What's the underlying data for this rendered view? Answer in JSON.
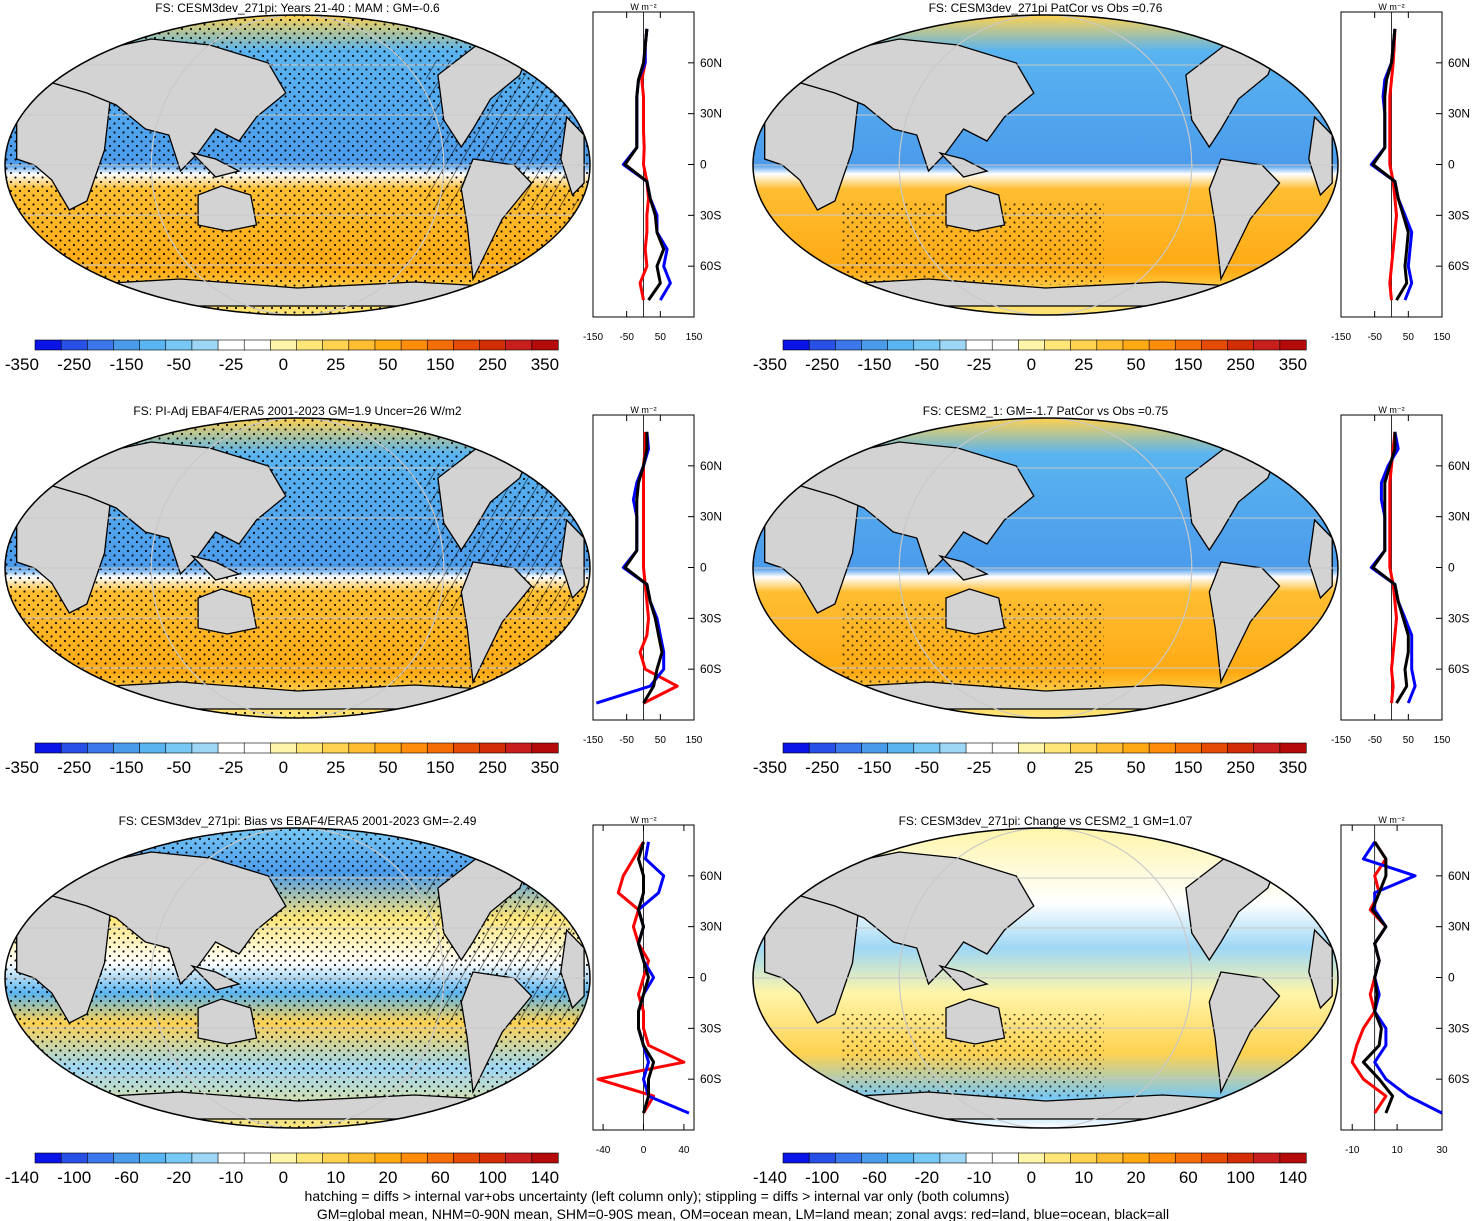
{
  "chart_data": [
    {
      "type": "heatmap",
      "title": "FS: CESM3dev_271pi: Years 21-40 : MAM : GM=-0.6",
      "colorbar_ticks": [
        "-350",
        "-250",
        "-150",
        "-50",
        "-25",
        "0",
        "25",
        "50",
        "150",
        "250",
        "350"
      ],
      "zonal": {
        "unit": "W m⁻²",
        "xticks": [
          "-150",
          "-50",
          "50",
          "150"
        ],
        "yticks": [
          "60N",
          "30N",
          "0",
          "30S",
          "60S"
        ],
        "xlim": [
          -150,
          150
        ],
        "lat": [
          80,
          70,
          60,
          50,
          40,
          30,
          20,
          10,
          0,
          -10,
          -20,
          -30,
          -40,
          -50,
          -60,
          -70,
          -80
        ],
        "series": [
          {
            "color": "#ff0000",
            "values": [
              10,
              5,
              5,
              -5,
              0,
              0,
              0,
              2,
              0,
              10,
              15,
              10,
              10,
              5,
              10,
              -10,
              0
            ]
          },
          {
            "color": "#0000ff",
            "values": [
              10,
              5,
              5,
              -15,
              -20,
              -20,
              -20,
              -20,
              -60,
              10,
              20,
              40,
              40,
              70,
              60,
              80,
              50
            ]
          },
          {
            "color": "#000000",
            "values": [
              10,
              5,
              0,
              -15,
              -20,
              -20,
              -20,
              -20,
              -55,
              10,
              20,
              35,
              40,
              60,
              40,
              50,
              15
            ]
          }
        ]
      }
    },
    {
      "type": "heatmap",
      "title": "FS: CESM3dev_271pi PatCor vs Obs =0.76",
      "colorbar_ticks": [
        "-350",
        "-250",
        "-150",
        "-50",
        "-25",
        "0",
        "25",
        "50",
        "150",
        "250",
        "350"
      ],
      "zonal": {
        "unit": "W m⁻²",
        "xticks": [
          "-150",
          "-50",
          "50",
          "150"
        ],
        "yticks": [
          "60N",
          "30N",
          "0",
          "30S",
          "60S"
        ],
        "xlim": [
          -150,
          150
        ],
        "lat": [
          80,
          70,
          60,
          50,
          40,
          30,
          20,
          10,
          0,
          -10,
          -20,
          -30,
          -40,
          -50,
          -60,
          -70,
          -80
        ],
        "series": [
          {
            "color": "#ff0000",
            "values": [
              10,
              8,
              5,
              0,
              -5,
              -5,
              -5,
              -5,
              -5,
              5,
              10,
              15,
              10,
              5,
              0,
              -5,
              0
            ]
          },
          {
            "color": "#0000ff",
            "values": [
              10,
              5,
              0,
              -20,
              -25,
              -20,
              -20,
              -20,
              -60,
              10,
              20,
              40,
              60,
              55,
              50,
              60,
              40
            ]
          },
          {
            "color": "#000000",
            "values": [
              10,
              5,
              0,
              -15,
              -20,
              -20,
              -20,
              -20,
              -55,
              10,
              20,
              35,
              50,
              45,
              40,
              45,
              15
            ]
          }
        ]
      }
    },
    {
      "type": "heatmap",
      "title": "FS: PI-Adj EBAF4/ERA5 2001-2023 GM=1.9 Uncer=26 W/m2",
      "colorbar_ticks": [
        "-350",
        "-250",
        "-150",
        "-50",
        "-25",
        "0",
        "25",
        "50",
        "150",
        "250",
        "350"
      ],
      "zonal": {
        "unit": "W m⁻²",
        "xticks": [
          "-150",
          "-50",
          "50",
          "150"
        ],
        "yticks": [
          "60N",
          "30N",
          "0",
          "30S",
          "60S"
        ],
        "xlim": [
          -150,
          150
        ],
        "lat": [
          80,
          70,
          60,
          50,
          40,
          30,
          20,
          10,
          0,
          -10,
          -20,
          -30,
          -40,
          -50,
          -60,
          -70,
          -80
        ],
        "series": [
          {
            "color": "#ff0000",
            "values": [
              5,
              5,
              0,
              0,
              0,
              0,
              0,
              0,
              0,
              5,
              10,
              15,
              10,
              -10,
              5,
              100,
              0
            ]
          },
          {
            "color": "#0000ff",
            "values": [
              10,
              15,
              0,
              -20,
              -30,
              -20,
              -20,
              -20,
              -60,
              10,
              20,
              40,
              50,
              60,
              60,
              20,
              -140
            ]
          },
          {
            "color": "#000000",
            "values": [
              10,
              10,
              0,
              -15,
              -20,
              -20,
              -20,
              -20,
              -55,
              10,
              20,
              35,
              45,
              55,
              40,
              30,
              0
            ]
          }
        ]
      }
    },
    {
      "type": "heatmap",
      "title": "FS: CESM2_1: GM=-1.7 PatCor vs Obs =0.75",
      "colorbar_ticks": [
        "-350",
        "-250",
        "-150",
        "-50",
        "-25",
        "0",
        "25",
        "50",
        "150",
        "250",
        "350"
      ],
      "zonal": {
        "unit": "W m⁻²",
        "xticks": [
          "-150",
          "-50",
          "50",
          "150"
        ],
        "yticks": [
          "60N",
          "30N",
          "0",
          "30S",
          "60S"
        ],
        "xlim": [
          -150,
          150
        ],
        "lat": [
          80,
          70,
          60,
          50,
          40,
          30,
          20,
          10,
          0,
          -10,
          -20,
          -30,
          -40,
          -50,
          -60,
          -70,
          -80
        ],
        "series": [
          {
            "color": "#ff0000",
            "values": [
              10,
              5,
              0,
              -5,
              -5,
              -5,
              -5,
              -5,
              -5,
              5,
              10,
              15,
              10,
              5,
              0,
              5,
              0
            ]
          },
          {
            "color": "#0000ff",
            "values": [
              10,
              20,
              -10,
              -30,
              -30,
              -20,
              -20,
              -20,
              -60,
              10,
              20,
              40,
              60,
              60,
              60,
              70,
              50
            ]
          },
          {
            "color": "#000000",
            "values": [
              10,
              10,
              -5,
              -20,
              -20,
              -20,
              -20,
              -20,
              -55,
              10,
              20,
              35,
              50,
              50,
              40,
              45,
              15
            ]
          }
        ]
      }
    },
    {
      "type": "heatmap",
      "title": "FS: CESM3dev_271pi: Bias vs EBAF4/ERA5 2001-2023 GM=-2.49",
      "colorbar_ticks": [
        "-140",
        "-100",
        "-60",
        "-20",
        "-10",
        "0",
        "10",
        "20",
        "60",
        "100",
        "140"
      ],
      "zonal": {
        "unit": "W m⁻²",
        "xticks": [
          "-40",
          "0",
          "40"
        ],
        "yticks": [
          "60N",
          "30N",
          "0",
          "30S",
          "60S"
        ],
        "xlim": [
          -50,
          50
        ],
        "lat": [
          80,
          70,
          60,
          50,
          40,
          30,
          20,
          10,
          0,
          -10,
          -20,
          -30,
          -40,
          -50,
          -60,
          -70,
          -80
        ],
        "series": [
          {
            "color": "#ff0000",
            "values": [
              0,
              -10,
              -20,
              -25,
              -5,
              -10,
              -5,
              5,
              0,
              -5,
              0,
              0,
              5,
              40,
              -45,
              10,
              0
            ]
          },
          {
            "color": "#0000ff",
            "values": [
              5,
              2,
              20,
              15,
              -5,
              0,
              -5,
              0,
              10,
              0,
              -5,
              -5,
              0,
              5,
              0,
              5,
              45
            ]
          },
          {
            "color": "#000000",
            "values": [
              0,
              -5,
              0,
              0,
              -5,
              0,
              -5,
              0,
              5,
              0,
              -5,
              -5,
              0,
              10,
              5,
              5,
              0
            ]
          }
        ]
      }
    },
    {
      "type": "heatmap",
      "title": "FS: CESM3dev_271pi: Change vs CESM2_1 GM=1.07",
      "colorbar_ticks": [
        "-140",
        "-100",
        "-60",
        "-20",
        "-10",
        "0",
        "10",
        "20",
        "60",
        "100",
        "140"
      ],
      "zonal": {
        "unit": "W m⁻²",
        "xticks": [
          "-10",
          "10",
          "30"
        ],
        "yticks": [
          "60N",
          "30N",
          "0",
          "30S",
          "60S"
        ],
        "xlim": [
          -15,
          30
        ],
        "lat": [
          80,
          70,
          60,
          50,
          40,
          30,
          20,
          10,
          0,
          -10,
          -20,
          -30,
          -40,
          -50,
          -60,
          -70,
          -80
        ],
        "series": [
          {
            "color": "#ff0000",
            "values": [
              0,
              5,
              0,
              2,
              -2,
              5,
              0,
              2,
              0,
              -2,
              0,
              -5,
              -8,
              -10,
              -5,
              5,
              0
            ]
          },
          {
            "color": "#0000ff",
            "values": [
              0,
              -5,
              18,
              0,
              0,
              5,
              0,
              2,
              0,
              2,
              0,
              5,
              5,
              0,
              5,
              15,
              30
            ]
          },
          {
            "color": "#000000",
            "values": [
              0,
              5,
              5,
              2,
              -1,
              5,
              0,
              2,
              0,
              1,
              0,
              3,
              2,
              -5,
              2,
              8,
              5
            ]
          }
        ]
      }
    }
  ],
  "colormap": [
    "#0a14e6",
    "#2850e6",
    "#3c78eb",
    "#4b9beb",
    "#5ab4f0",
    "#78c8f5",
    "#9ed7f5",
    "#ffffff",
    "#ffffff",
    "#fff5aa",
    "#ffe678",
    "#ffd250",
    "#ffbe32",
    "#ffaa14",
    "#ff8c0a",
    "#f56e05",
    "#e64b05",
    "#d22d05",
    "#c81e1e",
    "#b40a0a"
  ],
  "footer": {
    "line1": "hatching = diffs > internal var+obs uncertainty (left column only); stippling = diffs > internal var only (both columns)",
    "line2": "GM=global mean, NHM=0-90N mean, SHM=0-90S mean, OM=ocean mean, LM=land mean; zonal avgs: red=land, blue=ocean, black=all"
  }
}
